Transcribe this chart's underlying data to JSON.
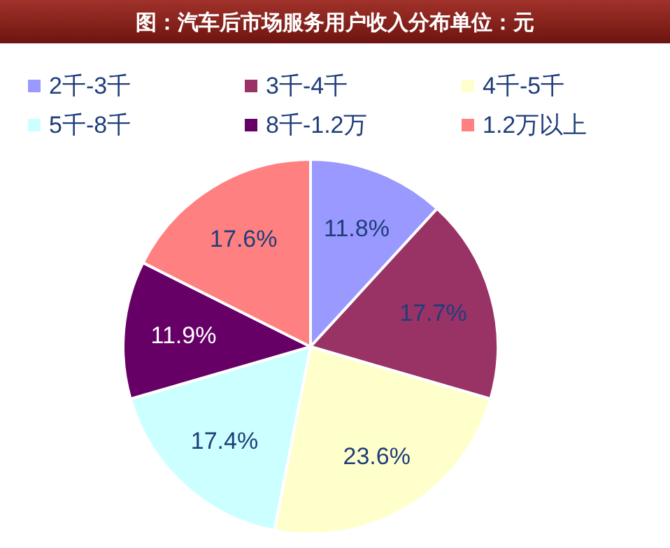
{
  "chart_data": {
    "type": "pie",
    "title": "图：汽车后市场服务用户收入分布单位：元",
    "categories": [
      "2千-3千",
      "3千-4千",
      "4千-5千",
      "5千-8千",
      "8千-1.2万",
      "1.2万以上"
    ],
    "values": [
      11.8,
      17.7,
      23.6,
      17.4,
      11.9,
      17.6
    ],
    "value_labels": [
      "11.8%",
      "17.7%",
      "23.6%",
      "17.4%",
      "11.9%",
      "17.6%"
    ],
    "colors": [
      "#9999ff",
      "#993366",
      "#ffffcc",
      "#ccffff",
      "#660066",
      "#ff8080"
    ],
    "legend": "top"
  }
}
